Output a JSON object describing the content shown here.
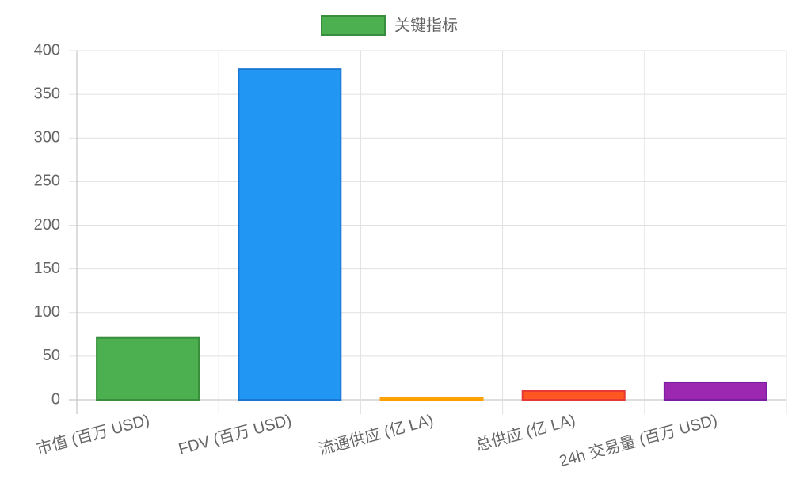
{
  "chart_data": {
    "type": "bar",
    "categories": [
      "市值 (百万 USD)",
      "FDV (百万 USD)",
      "流通供应 (亿 LA)",
      "总供应 (亿 LA)",
      "24h 交易量 (百万 USD)"
    ],
    "series": [
      {
        "name": "关键指标",
        "values": [
          71,
          379,
          1.98,
          10,
          20
        ],
        "colors": [
          "#4caf50",
          "#2196f3",
          "#ffc107",
          "#ff5722",
          "#9c27b0"
        ],
        "border_colors": [
          "#388e3c",
          "#1976d2",
          "#ffa000",
          "#e53935",
          "#7b1fa2"
        ]
      }
    ],
    "ylim": [
      0,
      400
    ],
    "yticks": [
      0,
      50,
      100,
      150,
      200,
      250,
      300,
      350,
      400
    ],
    "grid": true,
    "legend": "top"
  }
}
